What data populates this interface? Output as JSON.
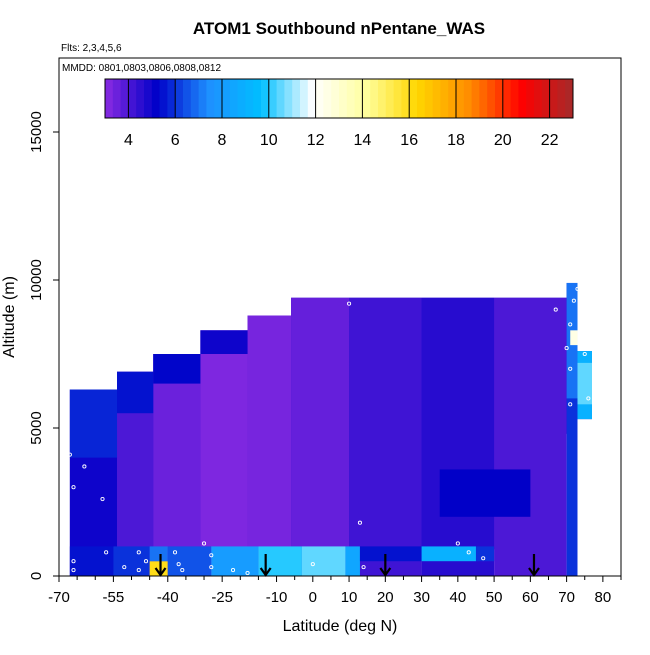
{
  "chart_data": {
    "type": "heatmap",
    "title": "ATOM1 Southbound nPentane_WAS",
    "flights_label": "Flts: 2,3,4,5,6",
    "dates_label": "MMDD: 0801,0803,0806,0808,0812",
    "xlabel": "Latitude (deg N)",
    "ylabel": "Altitude (m)",
    "xlim": [
      -70,
      85
    ],
    "ylim": [
      0,
      17500
    ],
    "x_ticks": [
      -70,
      -55,
      -40,
      -25,
      -10,
      0,
      10,
      20,
      30,
      40,
      50,
      60,
      70,
      80
    ],
    "y_ticks": [
      0,
      5000,
      10000,
      15000
    ],
    "colorbar": {
      "range": [
        3,
        23
      ],
      "ticks": [
        4,
        6,
        8,
        10,
        12,
        14,
        16,
        18,
        20,
        22
      ],
      "colors": [
        "#8a2be2",
        "#0000c8",
        "#1e90ff",
        "#00bfff",
        "#ffffff",
        "#ffffa0",
        "#ffd700",
        "#ff8c00",
        "#ff0000",
        "#a52a2a"
      ]
    },
    "arrow_latitudes": [
      -42,
      -13,
      20,
      61
    ],
    "filled_region_outline": [
      [
        -67,
        0
      ],
      [
        -67,
        6300
      ],
      [
        -54,
        6300
      ],
      [
        -54,
        6900
      ],
      [
        -44,
        6900
      ],
      [
        -44,
        7500
      ],
      [
        -31,
        7500
      ],
      [
        -31,
        8300
      ],
      [
        -18,
        8300
      ],
      [
        -18,
        8800
      ],
      [
        -6,
        8800
      ],
      [
        -6,
        9400
      ],
      [
        70,
        9400
      ],
      [
        70,
        9900
      ],
      [
        73,
        9900
      ],
      [
        73,
        7600
      ],
      [
        77,
        7600
      ],
      [
        77,
        5300
      ],
      [
        72,
        5300
      ],
      [
        72,
        4800
      ],
      [
        69,
        4800
      ],
      [
        69,
        4300
      ],
      [
        65,
        4300
      ],
      [
        65,
        3300
      ],
      [
        62,
        3300
      ],
      [
        62,
        2800
      ],
      [
        59,
        2800
      ],
      [
        59,
        2400
      ],
      [
        56,
        2400
      ],
      [
        56,
        1900
      ],
      [
        53,
        1900
      ],
      [
        53,
        1400
      ],
      [
        51,
        1400
      ],
      [
        51,
        900
      ],
      [
        50,
        900
      ],
      [
        50,
        500
      ],
      [
        13,
        500
      ],
      [
        13,
        0
      ]
    ],
    "value_bands": [
      {
        "lat": [
          -67,
          -54
        ],
        "alt": [
          0,
          6300
        ],
        "value": 5.0
      },
      {
        "lat": [
          -54,
          -44
        ],
        "alt": [
          0,
          6900
        ],
        "value": 4.0
      },
      {
        "lat": [
          -44,
          -31
        ],
        "alt": [
          0,
          7500
        ],
        "value": 3.5
      },
      {
        "lat": [
          -31,
          -18
        ],
        "alt": [
          0,
          8300
        ],
        "value": 3.2
      },
      {
        "lat": [
          -18,
          -6
        ],
        "alt": [
          0,
          8800
        ],
        "value": 3.3
      },
      {
        "lat": [
          -6,
          10
        ],
        "alt": [
          0,
          9400
        ],
        "value": 3.6
      },
      {
        "lat": [
          10,
          30
        ],
        "alt": [
          0,
          9400
        ],
        "value": 4.2
      },
      {
        "lat": [
          30,
          50
        ],
        "alt": [
          0,
          9400
        ],
        "value": 4.6
      },
      {
        "lat": [
          50,
          70
        ],
        "alt": [
          0,
          9400
        ],
        "value": 4.0
      },
      {
        "lat": [
          70,
          73
        ],
        "alt": [
          0,
          9900
        ],
        "value": 6.0
      },
      {
        "lat": [
          73,
          77
        ],
        "alt": [
          5300,
          7600
        ],
        "value": 9.0
      }
    ],
    "value_cells": [
      {
        "lat": [
          -67,
          -55
        ],
        "alt": [
          0,
          1000
        ],
        "value": 5.5
      },
      {
        "lat": [
          -55,
          -45
        ],
        "alt": [
          0,
          1000
        ],
        "value": 6.0
      },
      {
        "lat": [
          -45,
          -40
        ],
        "alt": [
          0,
          500
        ],
        "value": 16.0
      },
      {
        "lat": [
          -45,
          -40
        ],
        "alt": [
          500,
          1000
        ],
        "value": 7.0
      },
      {
        "lat": [
          -40,
          -28
        ],
        "alt": [
          0,
          1000
        ],
        "value": 6.5
      },
      {
        "lat": [
          -28,
          -15
        ],
        "alt": [
          0,
          1000
        ],
        "value": 8.0
      },
      {
        "lat": [
          -15,
          -3
        ],
        "alt": [
          0,
          1000
        ],
        "value": 10.0
      },
      {
        "lat": [
          -3,
          9
        ],
        "alt": [
          0,
          1000
        ],
        "value": 10.5
      },
      {
        "lat": [
          9,
          13
        ],
        "alt": [
          0,
          1000
        ],
        "value": 8.5
      },
      {
        "lat": [
          13,
          30
        ],
        "alt": [
          500,
          1000
        ],
        "value": 5.5
      },
      {
        "lat": [
          30,
          45
        ],
        "alt": [
          500,
          1000
        ],
        "value": 9.0
      },
      {
        "lat": [
          45,
          50
        ],
        "alt": [
          500,
          1000
        ],
        "value": 6.0
      },
      {
        "lat": [
          -67,
          -54
        ],
        "alt": [
          4000,
          6300
        ],
        "value": 5.8
      },
      {
        "lat": [
          -54,
          -44
        ],
        "alt": [
          5500,
          6900
        ],
        "value": 5.5
      },
      {
        "lat": [
          -44,
          -31
        ],
        "alt": [
          6500,
          7500
        ],
        "value": 5.3
      },
      {
        "lat": [
          -31,
          -18
        ],
        "alt": [
          7500,
          8300
        ],
        "value": 5.0
      },
      {
        "lat": [
          35,
          60
        ],
        "alt": [
          2000,
          3600
        ],
        "value": 5.2
      },
      {
        "lat": [
          70,
          73
        ],
        "alt": [
          6000,
          9900
        ],
        "value": 7.0
      },
      {
        "lat": [
          73,
          77
        ],
        "alt": [
          5800,
          7200
        ],
        "value": 10.5
      },
      {
        "lat": [
          71,
          73
        ],
        "alt": [
          7800,
          8300
        ],
        "value": 12.5
      }
    ],
    "sample_points": [
      [
        -67,
        6400
      ],
      [
        -67,
        4100
      ],
      [
        -66,
        3000
      ],
      [
        -66,
        500
      ],
      [
        -66,
        200
      ],
      [
        -63,
        3700
      ],
      [
        -58,
        2600
      ],
      [
        -57,
        800
      ],
      [
        -52,
        300
      ],
      [
        -48,
        800
      ],
      [
        -48,
        200
      ],
      [
        -46,
        500
      ],
      [
        -38,
        800
      ],
      [
        -37,
        400
      ],
      [
        -36,
        200
      ],
      [
        -30,
        1100
      ],
      [
        -28,
        700
      ],
      [
        -28,
        300
      ],
      [
        -22,
        200
      ],
      [
        -18,
        100
      ],
      [
        0,
        400
      ],
      [
        10,
        9200
      ],
      [
        13,
        1800
      ],
      [
        14,
        300
      ],
      [
        40,
        1100
      ],
      [
        43,
        800
      ],
      [
        47,
        600
      ],
      [
        67,
        9000
      ],
      [
        70,
        7700
      ],
      [
        71,
        7000
      ],
      [
        71,
        8500
      ],
      [
        71,
        5800
      ],
      [
        72,
        9300
      ],
      [
        73,
        9700
      ],
      [
        75,
        7500
      ],
      [
        76,
        6000
      ],
      [
        75,
        5200
      ]
    ]
  }
}
